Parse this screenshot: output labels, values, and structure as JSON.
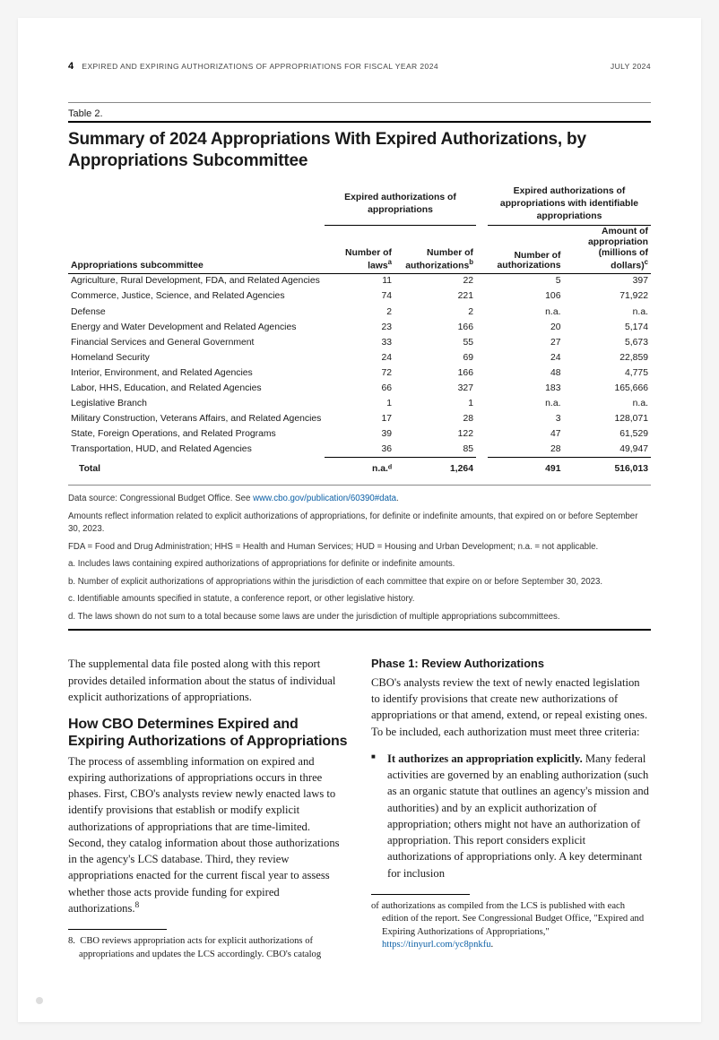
{
  "header": {
    "page_number": "4",
    "running_title": "EXPIRED AND EXPIRING AUTHORIZATIONS OF APPROPRIATIONS FOR FISCAL YEAR 2024",
    "date": "JULY 2024"
  },
  "table": {
    "label": "Table 2.",
    "title": "Summary of 2024 Appropriations With Expired Authorizations, by Appropriations Subcommittee",
    "spanners": {
      "left": "Expired authorizations of appropriations",
      "right": "Expired authorizations of appropriations with identifiable appropriations"
    },
    "columns": {
      "stub": "Appropriations subcommittee",
      "laws": "Number of lawsᵃ",
      "auths": "Number of authorizationsᵇ",
      "auths2": "Number of authorizations",
      "amount": "Amount of appropriation (millions of dollars)ᶜ"
    },
    "rows": [
      {
        "name": "Agriculture, Rural Development, FDA, and Related Agencies",
        "laws": "11",
        "auths": "22",
        "auths2": "5",
        "amount": "397"
      },
      {
        "name": "Commerce, Justice, Science, and Related Agencies",
        "laws": "74",
        "auths": "221",
        "auths2": "106",
        "amount": "71,922"
      },
      {
        "name": "Defense",
        "laws": "2",
        "auths": "2",
        "auths2": "n.a.",
        "amount": "n.a."
      },
      {
        "name": "Energy and Water Development and Related Agencies",
        "laws": "23",
        "auths": "166",
        "auths2": "20",
        "amount": "5,174"
      },
      {
        "name": "Financial Services and General Government",
        "laws": "33",
        "auths": "55",
        "auths2": "27",
        "amount": "5,673"
      },
      {
        "name": "Homeland Security",
        "laws": "24",
        "auths": "69",
        "auths2": "24",
        "amount": "22,859"
      },
      {
        "name": "Interior, Environment, and Related Agencies",
        "laws": "72",
        "auths": "166",
        "auths2": "48",
        "amount": "4,775"
      },
      {
        "name": "Labor, HHS, Education, and Related Agencies",
        "laws": "66",
        "auths": "327",
        "auths2": "183",
        "amount": "165,666"
      },
      {
        "name": "Legislative Branch",
        "laws": "1",
        "auths": "1",
        "auths2": "n.a.",
        "amount": "n.a."
      },
      {
        "name": "Military Construction, Veterans Affairs, and Related Agencies",
        "laws": "17",
        "auths": "28",
        "auths2": "3",
        "amount": "128,071"
      },
      {
        "name": "State, Foreign Operations, and Related Programs",
        "laws": "39",
        "auths": "122",
        "auths2": "47",
        "amount": "61,529"
      },
      {
        "name": "Transportation, HUD, and Related Agencies",
        "laws": "36",
        "auths": "85",
        "auths2": "28",
        "amount": "49,947"
      }
    ],
    "total": {
      "name": "Total",
      "laws": "n.a.ᵈ",
      "auths": "1,264",
      "auths2": "491",
      "amount": "516,013"
    },
    "notes": {
      "source_prefix": "Data source: Congressional Budget Office. See ",
      "source_link": "www.cbo.gov/publication/60390#data",
      "source_suffix": ".",
      "n1": "Amounts reflect information related to explicit authorizations of appropriations, for definite or indefinite amounts, that expired on or before September 30, 2023.",
      "n2": "FDA = Food and Drug Administration; HHS = Health and Human Services; HUD = Housing and Urban Development; n.a. = not applicable.",
      "a": "a.  Includes laws containing expired authorizations of appropriations for definite or indefinite amounts.",
      "b": "b.  Number of explicit authorizations of appropriations within the jurisdiction of each committee that expire on or before September 30, 2023.",
      "c": "c.  Identifiable amounts specified in statute, a conference report, or other legislative history.",
      "d": "d.  The laws shown do not sum to a total because some laws are under the jurisdiction of multiple appropriations subcommittees."
    }
  },
  "body": {
    "intro": "The supplemental data file posted along with this report provides detailed information about the status of individual explicit authorizations of appropriations.",
    "h2": "How CBO Determines Expired and Expiring Authorizations of Appropriations",
    "p2": "The process of assembling information on expired and expiring authorizations of appropriations occurs in three phases. First, CBO's analysts review newly enacted laws to identify provisions that establish or modify explicit authorizations of appropriations that are time-limited. Second, they catalog information about those authorizations in the agency's LCS database. Third, they review appropriations enacted for the current fiscal year to assess whether those acts provide funding for expired authorizations.",
    "fn8_marker": "8",
    "phase1_h": "Phase 1: Review Authorizations",
    "phase1_p": "CBO's analysts review the text of newly enacted legislation to identify provisions that create new authorizations of appropriations or that amend, extend, or repeal existing ones. To be included, each authorization must meet three criteria:",
    "crit1_lead": "It authorizes an appropriation explicitly.",
    "crit1_rest": " Many federal activities are governed by an enabling authorization (such as an organic statute that outlines an agency's mission and authorities) and by an explicit authorization of appropriation; others might not have an authorization of appropriation. This report considers explicit authorizations of appropriations only. A key determinant for inclusion",
    "fn8": "CBO reviews appropriation acts for explicit authorizations of appropriations and updates the LCS accordingly. CBO's catalog",
    "fn_cont": "of authorizations as compiled from the LCS is published with each edition of the report. See Congressional Budget Office, \"Expired and Expiring Authorizations of Appropriations,\" ",
    "fn_link": "https://tinyurl.com/yc8pnkfu",
    "fn_link_suffix": "."
  }
}
